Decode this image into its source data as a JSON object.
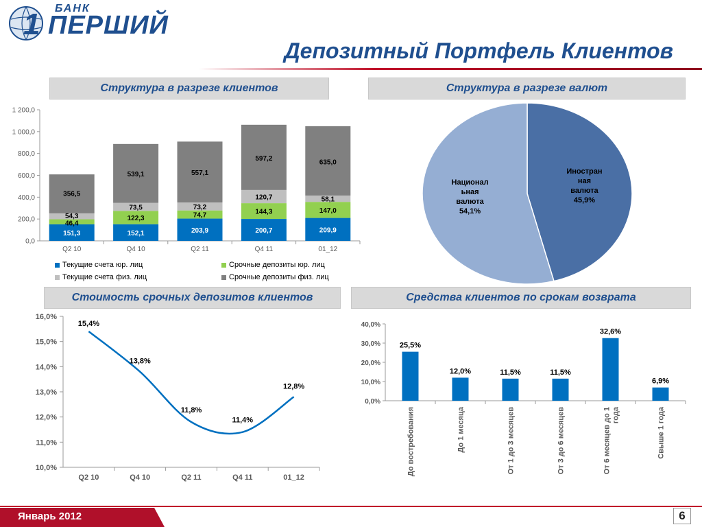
{
  "header": {
    "logo_small": "БАНК",
    "logo_big": "ПЕРШИЙ",
    "logo_digit": "1",
    "title": "Депозитный Портфель Клиентов"
  },
  "panels": {
    "clients": "Структура в разрезе клиентов",
    "currencies": "Структура в разрезе валют",
    "cost": "Стоимость срочных депозитов клиентов",
    "maturity": "Средства клиентов по срокам возврата"
  },
  "footer": {
    "date": "Январь 2012",
    "page": "6"
  },
  "colors": {
    "brand_blue": "#1f4f8f",
    "brand_red": "#c0122a",
    "bar_blue": "#0070c0",
    "bar_green": "#92d050",
    "bar_lightgray": "#bfbfbf",
    "bar_gray": "#808080",
    "pie_dark": "#4a6fa5",
    "pie_light": "#95aed3"
  },
  "chart_data": [
    {
      "type": "bar",
      "stacked": true,
      "categories": [
        "Q2 10",
        "Q4 10",
        "Q2 11",
        "Q4 11",
        "01_12"
      ],
      "ylim": [
        0,
        1200
      ],
      "yticks": [
        "0,0",
        "200,0",
        "400,0",
        "600,0",
        "800,0",
        "1 000,0",
        "1 200,0"
      ],
      "legend_position": "bottom",
      "series": [
        {
          "name": "Текущие счета юр. лиц",
          "values": [
            151.3,
            152.1,
            203.9,
            200.7,
            209.9
          ],
          "labels": [
            "151,3",
            "152,1",
            "203,9",
            "200,7",
            "209,9"
          ]
        },
        {
          "name": "Срочные депозиты юр. лиц",
          "values": [
            46.4,
            122.3,
            74.7,
            144.3,
            147.0
          ],
          "labels": [
            "46,4",
            "122,3",
            "74,7",
            "144,3",
            "147,0"
          ]
        },
        {
          "name": "Текущие счета физ. лиц",
          "values": [
            54.3,
            73.5,
            73.2,
            120.7,
            58.1
          ],
          "labels": [
            "54,3",
            "73,5",
            "73,2",
            "120,7",
            "58,1"
          ]
        },
        {
          "name": "Срочные депозиты физ. лиц",
          "values": [
            356.5,
            539.1,
            557.1,
            597.2,
            635.0
          ],
          "labels": [
            "356,5",
            "539,1",
            "557,1",
            "597,2",
            "635,0"
          ]
        }
      ]
    },
    {
      "type": "pie",
      "slices": [
        {
          "name": "Иностранная валюта",
          "value": 45.9,
          "label_lines": [
            "Иностран",
            "ная",
            "валюта",
            "45,9%"
          ]
        },
        {
          "name": "Национальная валюта",
          "value": 54.1,
          "label_lines": [
            "Национал",
            "ьная",
            "валюта",
            "54,1%"
          ]
        }
      ]
    },
    {
      "type": "line",
      "x": [
        "Q2 10",
        "Q4 10",
        "Q2 11",
        "Q4 11",
        "01_12"
      ],
      "values": [
        15.4,
        13.8,
        11.8,
        11.4,
        12.8
      ],
      "labels": [
        "15,4%",
        "13,8%",
        "11,8%",
        "11,4%",
        "12,8%"
      ],
      "ylim": [
        10,
        16
      ],
      "yticks": [
        "10,0%",
        "11,0%",
        "12,0%",
        "13,0%",
        "14,0%",
        "15,0%",
        "16,0%"
      ],
      "smooth": true
    },
    {
      "type": "bar",
      "categories": [
        "До востребования",
        "До 1 месяца",
        "От 1 до 3 месяцев",
        "От 3 до 6 месяцев",
        "От 6 месяцев до 1 года",
        "Свыше 1 года"
      ],
      "values": [
        25.5,
        12.0,
        11.5,
        11.5,
        32.6,
        6.9
      ],
      "labels": [
        "25,5%",
        "12,0%",
        "11,5%",
        "11,5%",
        "32,6%",
        "6,9%"
      ],
      "ylim": [
        0,
        40
      ],
      "yticks": [
        "0,0%",
        "10,0%",
        "20,0%",
        "30,0%",
        "40,0%"
      ]
    }
  ]
}
